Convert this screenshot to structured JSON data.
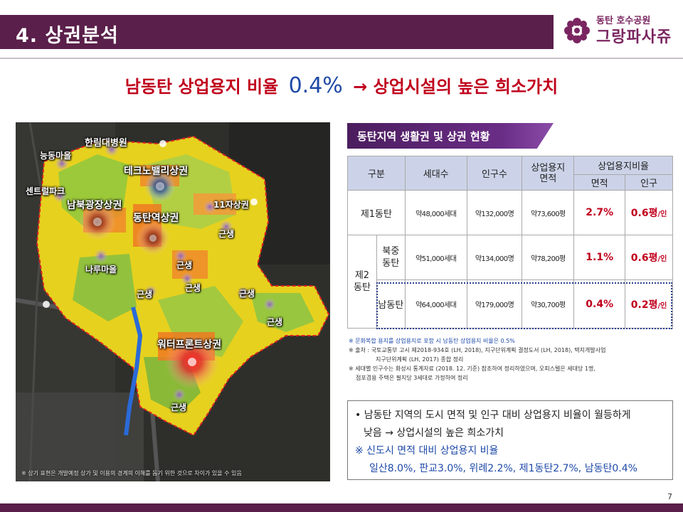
{
  "header": {
    "title": "4. 상권분석",
    "logo_sub": "동탄 호수공원",
    "logo_main": "그랑파사쥬",
    "accent": "#5a1f4a"
  },
  "headline": {
    "prefix": "남동탄 상업용지 비율",
    "value": "0.4%",
    "suffix": "→ 상업시설의 높은 희소가치"
  },
  "map": {
    "labels": {
      "hanlim": "한림대병원",
      "neungdong": "능동마을",
      "techno": "테크노밸리상권",
      "central": "센트럴파크",
      "nambuk": "남북광장상권",
      "jasang": "11자상권",
      "dongtan_station": "동탄역상권",
      "neul": "나루마을",
      "waterfront": "워터프론트상권"
    },
    "neighborhood_label": "근생",
    "note": "※ 상기 표현은 개발예정 상가 및 이용의 경계의 이해를 돕기 위한 것으로 차이가 있을 수 있음"
  },
  "tab": {
    "label": "동탄지역 생활권 및 상권 현황"
  },
  "table": {
    "headers": {
      "division": "구분",
      "households": "세대수",
      "population": "인구수",
      "area": "상업용지 면적",
      "ratio": "상업용지비율",
      "by_area": "면적",
      "by_pop": "인구"
    },
    "rows": [
      {
        "name": "제1동탄",
        "households": "약48,000세대",
        "population": "약132,000명",
        "area": "약73,600평",
        "area_ratio": "2.7%",
        "pop_ratio": "0.6평",
        "unit": "/인"
      },
      {
        "group": "제2 동탄",
        "name": "북중 동탄",
        "households": "약51,000세대",
        "population": "약134,000명",
        "area": "약78,200평",
        "area_ratio": "1.1%",
        "pop_ratio": "0.6평",
        "unit": "/인"
      },
      {
        "name": "남동탄",
        "households": "약64,000세대",
        "population": "약179,000명",
        "area": "약30,700평",
        "area_ratio": "0.4%",
        "pop_ratio": "0.2평",
        "unit": "/인"
      }
    ]
  },
  "notes": [
    "※ 문화복합 용지를 상업용지로 포함 시 남동탄 상업용지 비율은 0.5%",
    "※ 출처 : 국토교통부 고시 제2018-934호 (LH, 2018), 지구단위계획 결정도서 (LH, 2018), 택지개발사업",
    "지구단위계획 (LH, 2017) 종합 정리",
    "※ 세대별 인구수는 화성시 통계자료 (2018. 12. 기준) 참조하여 정리하였으며, 오피스텔은 세대당 1명,",
    "점포겸용 주택은 필지당 3세대로 가정하여 정리"
  ],
  "summary": {
    "line1": "• 남동탄 지역의 도시 면적 및 인구 대비 상업용지 비율이 월등하게",
    "line2": "낮음 → 상업시설의 높은 희소가치",
    "ref_title": "※ 신도시 면적 대비 상업용지 비율",
    "ref_values": "일산8.0%, 판교3.0%, 위례2.2%, 제1동탄2.7%, 남동탄0.4%"
  },
  "page_number": "7"
}
